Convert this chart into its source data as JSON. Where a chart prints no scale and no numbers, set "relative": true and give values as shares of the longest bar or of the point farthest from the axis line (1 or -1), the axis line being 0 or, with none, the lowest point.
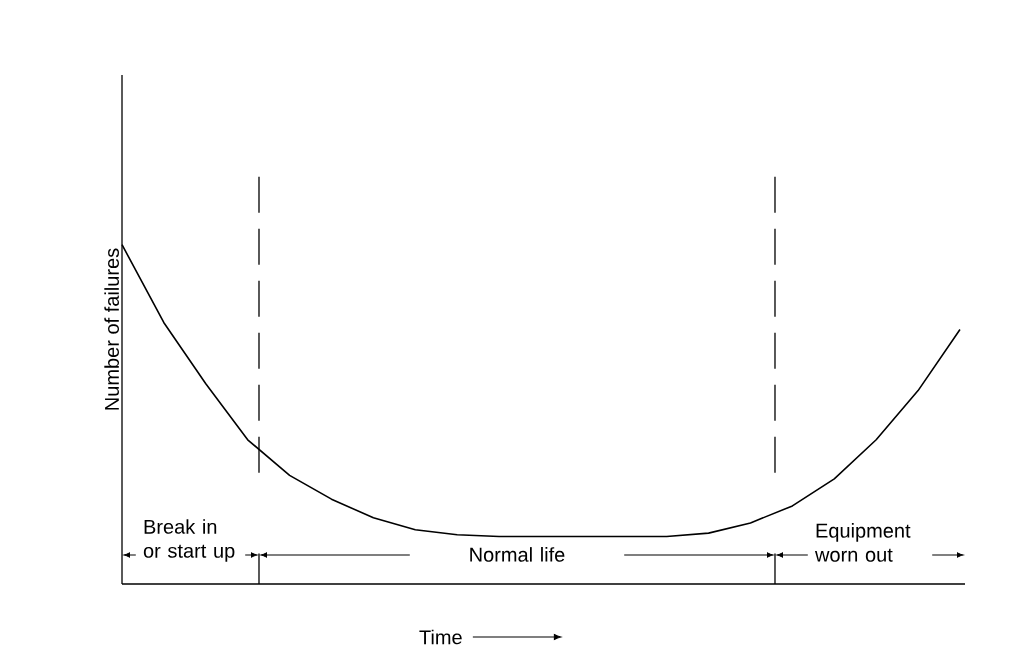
{
  "chart_data": {
    "type": "line",
    "relative": true,
    "xlabel": "Time",
    "ylabel": "Number of failures",
    "categories": [
      null,
      null,
      null,
      null,
      null,
      null,
      null,
      null,
      null,
      null,
      null,
      null,
      null,
      null,
      null,
      null,
      null,
      null,
      null,
      null,
      null
    ],
    "series": [
      {
        "color": "#000000",
        "values": [
          1.0,
          0.77,
          0.59,
          0.425,
          0.32,
          0.25,
          0.195,
          0.16,
          0.145,
          0.14,
          0.14,
          0.14,
          0.14,
          0.14,
          0.15,
          0.18,
          0.23,
          0.31,
          0.425,
          0.57,
          0.75
        ]
      }
    ],
    "annotations": [
      "Break in or start up",
      "Normal life",
      "Equipment worn out"
    ]
  }
}
